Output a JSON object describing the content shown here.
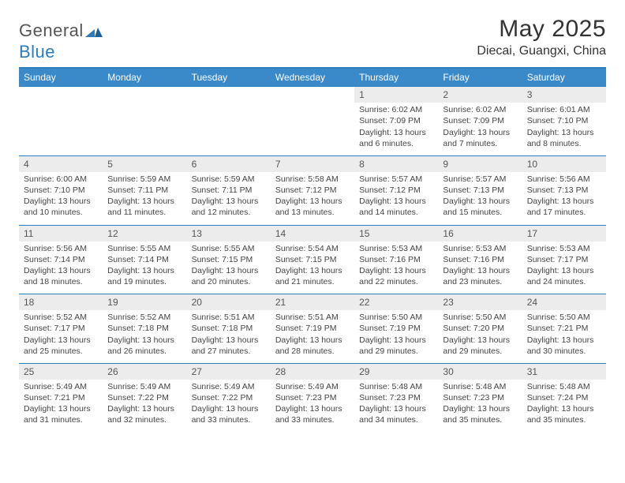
{
  "brand": {
    "general": "General",
    "blue": "Blue"
  },
  "title": "May 2025",
  "location": "Diecai, Guangxi, China",
  "colors": {
    "header_bg": "#3a89c9",
    "header_text": "#ffffff",
    "rule": "#2f7fc0",
    "daynum_bg": "#ececec",
    "text": "#444444",
    "logo_accent": "#2b7bbf"
  },
  "dow": [
    "Sunday",
    "Monday",
    "Tuesday",
    "Wednesday",
    "Thursday",
    "Friday",
    "Saturday"
  ],
  "weeks": [
    [
      null,
      null,
      null,
      null,
      {
        "n": "1",
        "sr": "6:02 AM",
        "ss": "7:09 PM",
        "dl": "13 hours and 6 minutes."
      },
      {
        "n": "2",
        "sr": "6:02 AM",
        "ss": "7:09 PM",
        "dl": "13 hours and 7 minutes."
      },
      {
        "n": "3",
        "sr": "6:01 AM",
        "ss": "7:10 PM",
        "dl": "13 hours and 8 minutes."
      }
    ],
    [
      {
        "n": "4",
        "sr": "6:00 AM",
        "ss": "7:10 PM",
        "dl": "13 hours and 10 minutes."
      },
      {
        "n": "5",
        "sr": "5:59 AM",
        "ss": "7:11 PM",
        "dl": "13 hours and 11 minutes."
      },
      {
        "n": "6",
        "sr": "5:59 AM",
        "ss": "7:11 PM",
        "dl": "13 hours and 12 minutes."
      },
      {
        "n": "7",
        "sr": "5:58 AM",
        "ss": "7:12 PM",
        "dl": "13 hours and 13 minutes."
      },
      {
        "n": "8",
        "sr": "5:57 AM",
        "ss": "7:12 PM",
        "dl": "13 hours and 14 minutes."
      },
      {
        "n": "9",
        "sr": "5:57 AM",
        "ss": "7:13 PM",
        "dl": "13 hours and 15 minutes."
      },
      {
        "n": "10",
        "sr": "5:56 AM",
        "ss": "7:13 PM",
        "dl": "13 hours and 17 minutes."
      }
    ],
    [
      {
        "n": "11",
        "sr": "5:56 AM",
        "ss": "7:14 PM",
        "dl": "13 hours and 18 minutes."
      },
      {
        "n": "12",
        "sr": "5:55 AM",
        "ss": "7:14 PM",
        "dl": "13 hours and 19 minutes."
      },
      {
        "n": "13",
        "sr": "5:55 AM",
        "ss": "7:15 PM",
        "dl": "13 hours and 20 minutes."
      },
      {
        "n": "14",
        "sr": "5:54 AM",
        "ss": "7:15 PM",
        "dl": "13 hours and 21 minutes."
      },
      {
        "n": "15",
        "sr": "5:53 AM",
        "ss": "7:16 PM",
        "dl": "13 hours and 22 minutes."
      },
      {
        "n": "16",
        "sr": "5:53 AM",
        "ss": "7:16 PM",
        "dl": "13 hours and 23 minutes."
      },
      {
        "n": "17",
        "sr": "5:53 AM",
        "ss": "7:17 PM",
        "dl": "13 hours and 24 minutes."
      }
    ],
    [
      {
        "n": "18",
        "sr": "5:52 AM",
        "ss": "7:17 PM",
        "dl": "13 hours and 25 minutes."
      },
      {
        "n": "19",
        "sr": "5:52 AM",
        "ss": "7:18 PM",
        "dl": "13 hours and 26 minutes."
      },
      {
        "n": "20",
        "sr": "5:51 AM",
        "ss": "7:18 PM",
        "dl": "13 hours and 27 minutes."
      },
      {
        "n": "21",
        "sr": "5:51 AM",
        "ss": "7:19 PM",
        "dl": "13 hours and 28 minutes."
      },
      {
        "n": "22",
        "sr": "5:50 AM",
        "ss": "7:19 PM",
        "dl": "13 hours and 29 minutes."
      },
      {
        "n": "23",
        "sr": "5:50 AM",
        "ss": "7:20 PM",
        "dl": "13 hours and 29 minutes."
      },
      {
        "n": "24",
        "sr": "5:50 AM",
        "ss": "7:21 PM",
        "dl": "13 hours and 30 minutes."
      }
    ],
    [
      {
        "n": "25",
        "sr": "5:49 AM",
        "ss": "7:21 PM",
        "dl": "13 hours and 31 minutes."
      },
      {
        "n": "26",
        "sr": "5:49 AM",
        "ss": "7:22 PM",
        "dl": "13 hours and 32 minutes."
      },
      {
        "n": "27",
        "sr": "5:49 AM",
        "ss": "7:22 PM",
        "dl": "13 hours and 33 minutes."
      },
      {
        "n": "28",
        "sr": "5:49 AM",
        "ss": "7:23 PM",
        "dl": "13 hours and 33 minutes."
      },
      {
        "n": "29",
        "sr": "5:48 AM",
        "ss": "7:23 PM",
        "dl": "13 hours and 34 minutes."
      },
      {
        "n": "30",
        "sr": "5:48 AM",
        "ss": "7:23 PM",
        "dl": "13 hours and 35 minutes."
      },
      {
        "n": "31",
        "sr": "5:48 AM",
        "ss": "7:24 PM",
        "dl": "13 hours and 35 minutes."
      }
    ]
  ],
  "labels": {
    "sunrise": "Sunrise: ",
    "sunset": "Sunset: ",
    "daylight": "Daylight: "
  }
}
